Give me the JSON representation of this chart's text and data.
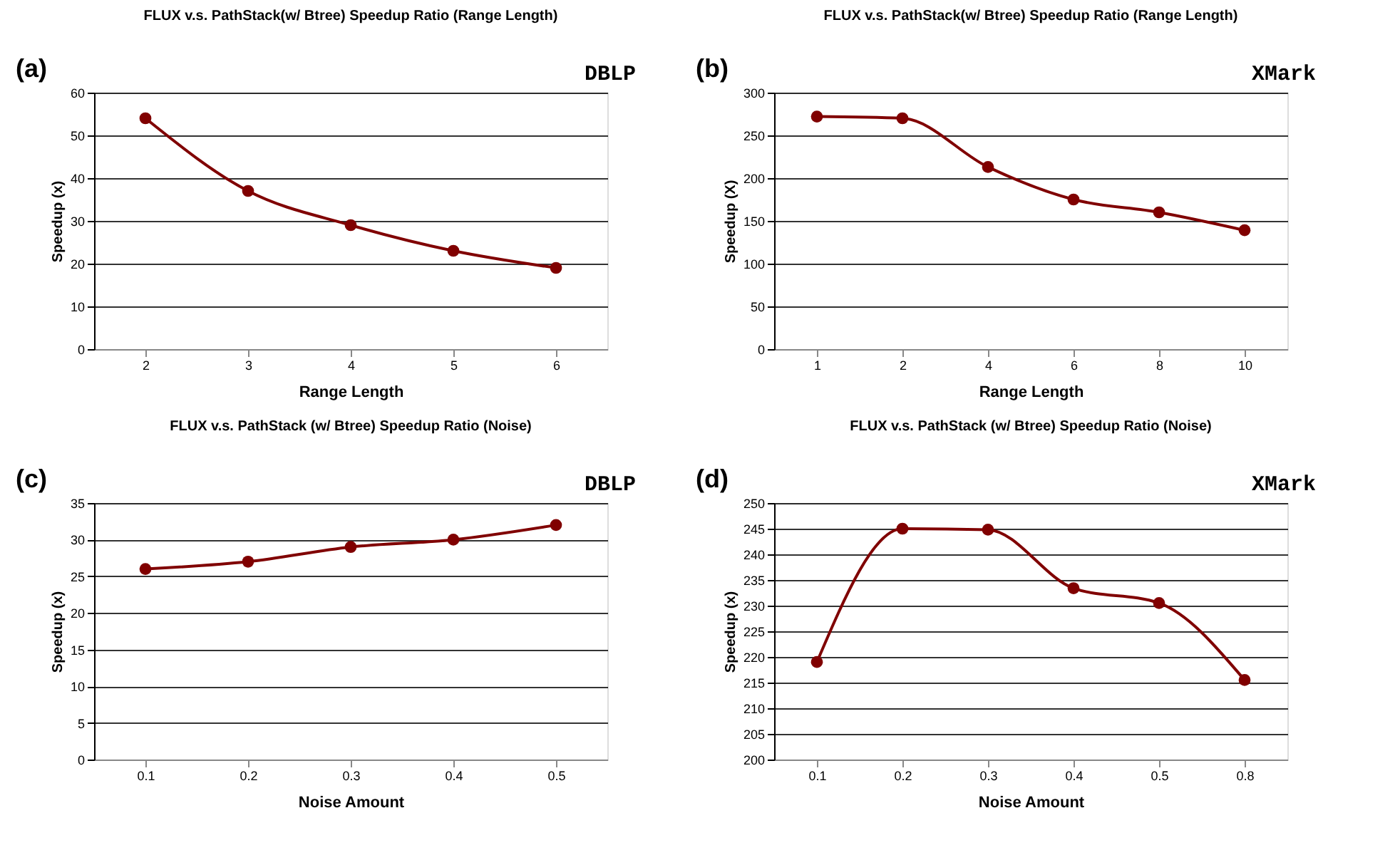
{
  "chart_data": [
    {
      "type": "line",
      "title": "FLUX v.s. PathStack(w/ Btree) Speedup Ratio (Range Length)",
      "xlabel": "Range Length",
      "ylabel": "Speedup (x)",
      "annotations": [
        "(a)",
        "DBLP"
      ],
      "categories": [
        "2",
        "3",
        "4",
        "5",
        "6"
      ],
      "series": [
        {
          "color": "#800000",
          "values": [
            54,
            37,
            29,
            23,
            19
          ]
        }
      ],
      "ylim": [
        0,
        60
      ],
      "yticks": [
        0,
        10,
        20,
        30,
        40,
        50,
        60
      ],
      "grid": "y",
      "marker": "circle",
      "line_style": "solid"
    },
    {
      "type": "line",
      "title": "FLUX v.s. PathStack(w/ Btree) Speedup Ratio (Range Length)",
      "xlabel": "Range Length",
      "ylabel": "Speedup (X)",
      "annotations": [
        "(b)",
        "XMark"
      ],
      "categories": [
        "1",
        "2",
        "4",
        "6",
        "8",
        "10"
      ],
      "series": [
        {
          "color": "#800000",
          "values": [
            272,
            270,
            213,
            175,
            160,
            139
          ]
        }
      ],
      "ylim": [
        0,
        300
      ],
      "yticks": [
        0,
        50,
        100,
        150,
        200,
        250,
        300
      ],
      "grid": "y",
      "marker": "circle",
      "line_style": "solid"
    },
    {
      "type": "line",
      "title": "FLUX v.s. PathStack (w/ Btree) Speedup Ratio (Noise)",
      "xlabel": "Noise Amount",
      "ylabel": "Speedup (x)",
      "annotations": [
        "(c)",
        "DBLP"
      ],
      "categories": [
        "0.1",
        "0.2",
        "0.3",
        "0.4",
        "0.5"
      ],
      "series": [
        {
          "color": "#800000",
          "values": [
            26,
            27,
            29,
            30,
            32
          ]
        }
      ],
      "ylim": [
        0,
        35
      ],
      "yticks": [
        0,
        5,
        10,
        15,
        20,
        25,
        30,
        35
      ],
      "grid": "y",
      "marker": "circle",
      "line_style": "solid"
    },
    {
      "type": "line",
      "title": "FLUX v.s. PathStack (w/ Btree) Speedup Ratio (Noise)",
      "xlabel": "Noise Amount",
      "ylabel": "Speedup (x)",
      "annotations": [
        "(d)",
        "XMark"
      ],
      "categories": [
        "0.1",
        "0.2",
        "0.3",
        "0.4",
        "0.5",
        "0.8"
      ],
      "series": [
        {
          "color": "#800000",
          "values": [
            219,
            245,
            244.8,
            233.4,
            230.5,
            215.5
          ]
        }
      ],
      "ylim": [
        200,
        250
      ],
      "yticks": [
        200,
        205,
        210,
        215,
        220,
        225,
        230,
        235,
        240,
        245,
        250
      ],
      "grid": "y",
      "marker": "circle",
      "line_style": "solid"
    }
  ]
}
